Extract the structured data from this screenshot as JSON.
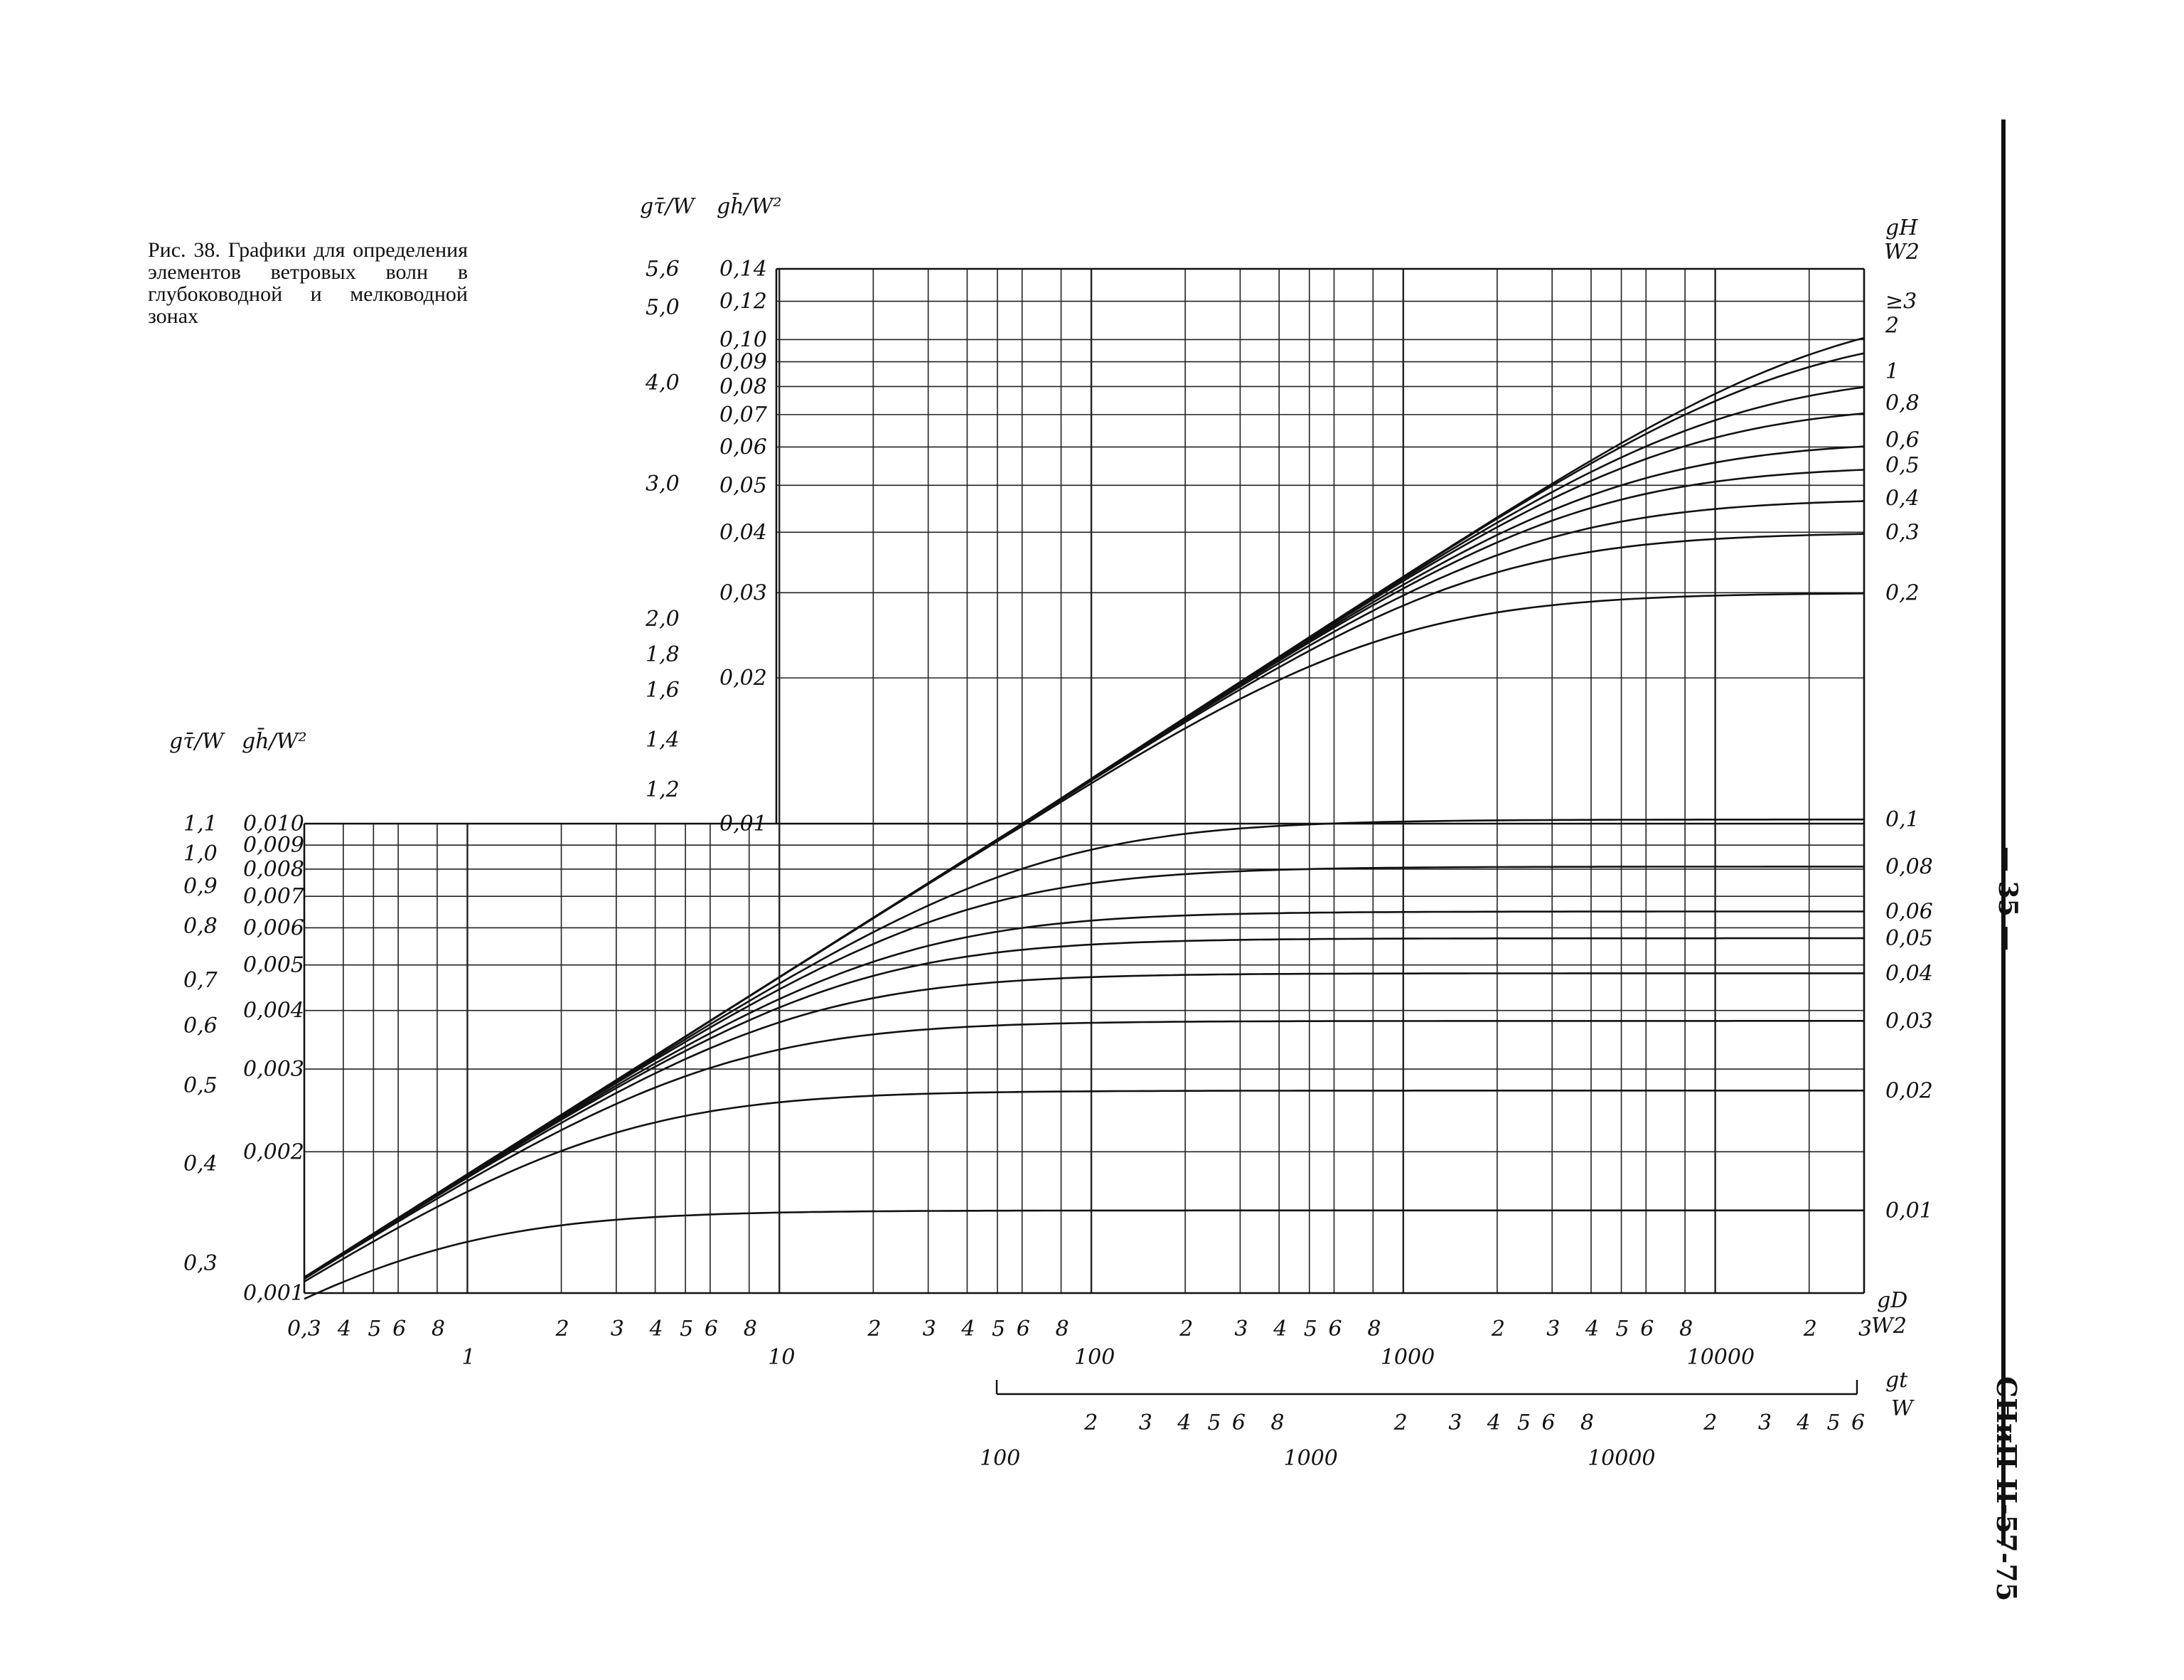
{
  "caption": "Рис. 38. Графики для определения элементов ветровых волн в глубоководной и мелководной зонах",
  "page_number": "— 35 —",
  "doc_code": "СНиП II-57-75",
  "chart_data": {
    "type": "line",
    "x_axis": {
      "scale": "log",
      "label_top": "gD",
      "label_bottom": "W2",
      "range": [
        0.3,
        30000
      ],
      "tick_labels": [
        "0,3",
        "4",
        "5",
        "6",
        "8",
        "1",
        "2",
        "3",
        "4",
        "5",
        "6",
        "8",
        "10",
        "2",
        "3",
        "4",
        "5",
        "6",
        "8",
        "100",
        "2",
        "3",
        "4",
        "5",
        "6",
        "8",
        "1000",
        "2",
        "3",
        "4",
        "5",
        "6",
        "8",
        "10000",
        "2",
        "3"
      ]
    },
    "x2_axis": {
      "scale": "log",
      "label_top": "gt",
      "label_bottom": "W",
      "range": [
        100,
        60000
      ],
      "tick_labels": [
        "100",
        "2",
        "3",
        "4",
        "5",
        "6",
        "8",
        "1000",
        "2",
        "3",
        "4",
        "5",
        "6",
        "8",
        "10000",
        "2",
        "3",
        "4",
        "5",
        "6"
      ]
    },
    "deep_axes": {
      "tau_label": "gτ̄/W",
      "h_label": "gh̄/W²",
      "tau_ticks": [
        "5,6",
        "5,0",
        "4,0",
        "3,0",
        "2,0",
        "1,8",
        "1,6",
        "1,4",
        "1,2"
      ],
      "h_ticks": [
        "0,14",
        "0,12",
        "0,10",
        "0,09",
        "0,08",
        "0,07",
        "0,06",
        "0,05",
        "0,04",
        "0,03",
        "0,02",
        "0,01"
      ],
      "h_range": [
        0.01,
        0.14
      ]
    },
    "shallow_axes": {
      "tau_label": "gτ̄/W",
      "h_label": "gh̄/W²",
      "tau_ticks": [
        "1,1",
        "1,0",
        "0,9",
        "0,8",
        "0,7",
        "0,6",
        "0,5",
        "0,4",
        "0,3"
      ],
      "h_ticks": [
        "0,010",
        "0,009",
        "0,008",
        "0,007",
        "0,006",
        "0,005",
        "0,004",
        "0,003",
        "0,002",
        "0,001"
      ],
      "h_range": [
        0.001,
        0.01
      ]
    },
    "curve_axis": {
      "label_top": "gH",
      "label_bottom": "W2",
      "labels": [
        "≥3",
        "2",
        "1",
        "0,8",
        "0,6",
        "0,5",
        "0,4",
        "0,3",
        "0,2",
        "0,1",
        "0,08",
        "0,06",
        "0,05",
        "0,04",
        "0,03",
        "0,02",
        "0,01"
      ]
    },
    "series": [
      {
        "value": 3,
        "plateau_h": 0.12
      },
      {
        "value": 2,
        "plateau_h": 0.107
      },
      {
        "value": 1,
        "plateau_h": 0.086
      },
      {
        "value": 0.8,
        "plateau_h": 0.074
      },
      {
        "value": 0.6,
        "plateau_h": 0.062
      },
      {
        "value": 0.5,
        "plateau_h": 0.055
      },
      {
        "value": 0.4,
        "plateau_h": 0.047
      },
      {
        "value": 0.3,
        "plateau_h": 0.04
      },
      {
        "value": 0.2,
        "plateau_h": 0.03
      },
      {
        "value": 0.1,
        "plateau_h": 0.0102
      },
      {
        "value": 0.08,
        "plateau_h": 0.0081
      },
      {
        "value": 0.06,
        "plateau_h": 0.0065
      },
      {
        "value": 0.05,
        "plateau_h": 0.0057
      },
      {
        "value": 0.04,
        "plateau_h": 0.0048
      },
      {
        "value": 0.03,
        "plateau_h": 0.0038
      },
      {
        "value": 0.02,
        "plateau_h": 0.0027
      },
      {
        "value": 0.01,
        "plateau_h": 0.0015
      }
    ],
    "grid": true
  }
}
